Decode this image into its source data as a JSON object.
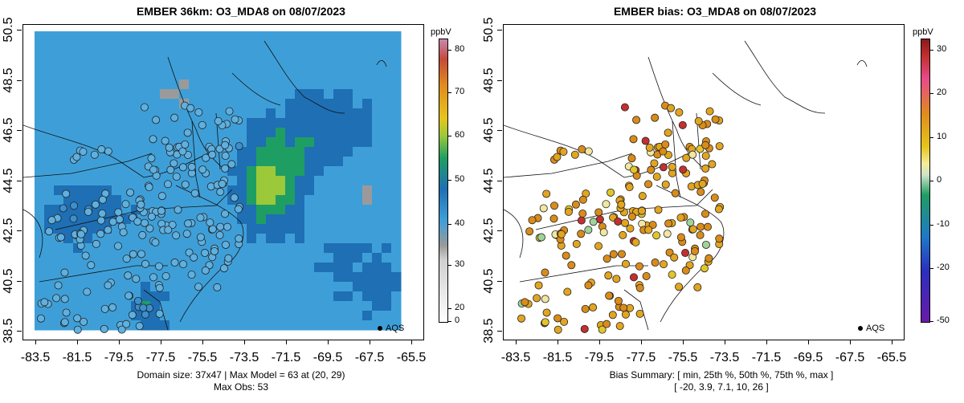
{
  "left_panel": {
    "title": "EMBER 36km: O3_MDA8 on 08/07/2023",
    "x_ticks": [
      "-83.5",
      "-81.5",
      "-79.5",
      "-77.5",
      "-75.5",
      "-73.5",
      "-71.5",
      "-69.5",
      "-67.5",
      "-65.5"
    ],
    "y_ticks": [
      "38.5",
      "40.5",
      "42.5",
      "44.5",
      "46.5",
      "48.5",
      "50.5"
    ],
    "caption_line1": "Domain size: 37x47 | Max Model = 63 at (20, 29)",
    "caption_line2": "Max Obs: 53",
    "legend_label": "AQS",
    "colorbar": {
      "unit": "ppbV",
      "ticks": [
        "80",
        "70",
        "60",
        "50",
        "40",
        "30",
        "20",
        "0"
      ],
      "range": [
        0,
        82
      ]
    }
  },
  "right_panel": {
    "title": "EMBER bias: O3_MDA8 on 08/07/2023",
    "x_ticks": [
      "-83.5",
      "-81.5",
      "-79.5",
      "-77.5",
      "-75.5",
      "-73.5",
      "-71.5",
      "-69.5",
      "-67.5",
      "-65.5"
    ],
    "y_ticks": [
      "38.5",
      "40.5",
      "42.5",
      "44.5",
      "46.5",
      "48.5",
      "50.5"
    ],
    "caption_line1": "Bias Summary: [ min, 25th %, 50th %, 75th %, max ]",
    "caption_line2": "[ -20,   3.9,   7.1,   10,   26 ]",
    "legend_label": "AQS",
    "colorbar": {
      "unit": "ppbV",
      "ticks": [
        "30",
        "20",
        "10",
        "0",
        "-10",
        "-20",
        "-50"
      ],
      "range": [
        -50,
        33
      ]
    }
  },
  "colors": {
    "ozone_low": "#2b6fc0",
    "ozone_mid": "#1f9e63",
    "ozone_high": "#e8c21a",
    "bias_positive": "#d98c1a",
    "bias_neutral": "#f2e6a0"
  }
}
